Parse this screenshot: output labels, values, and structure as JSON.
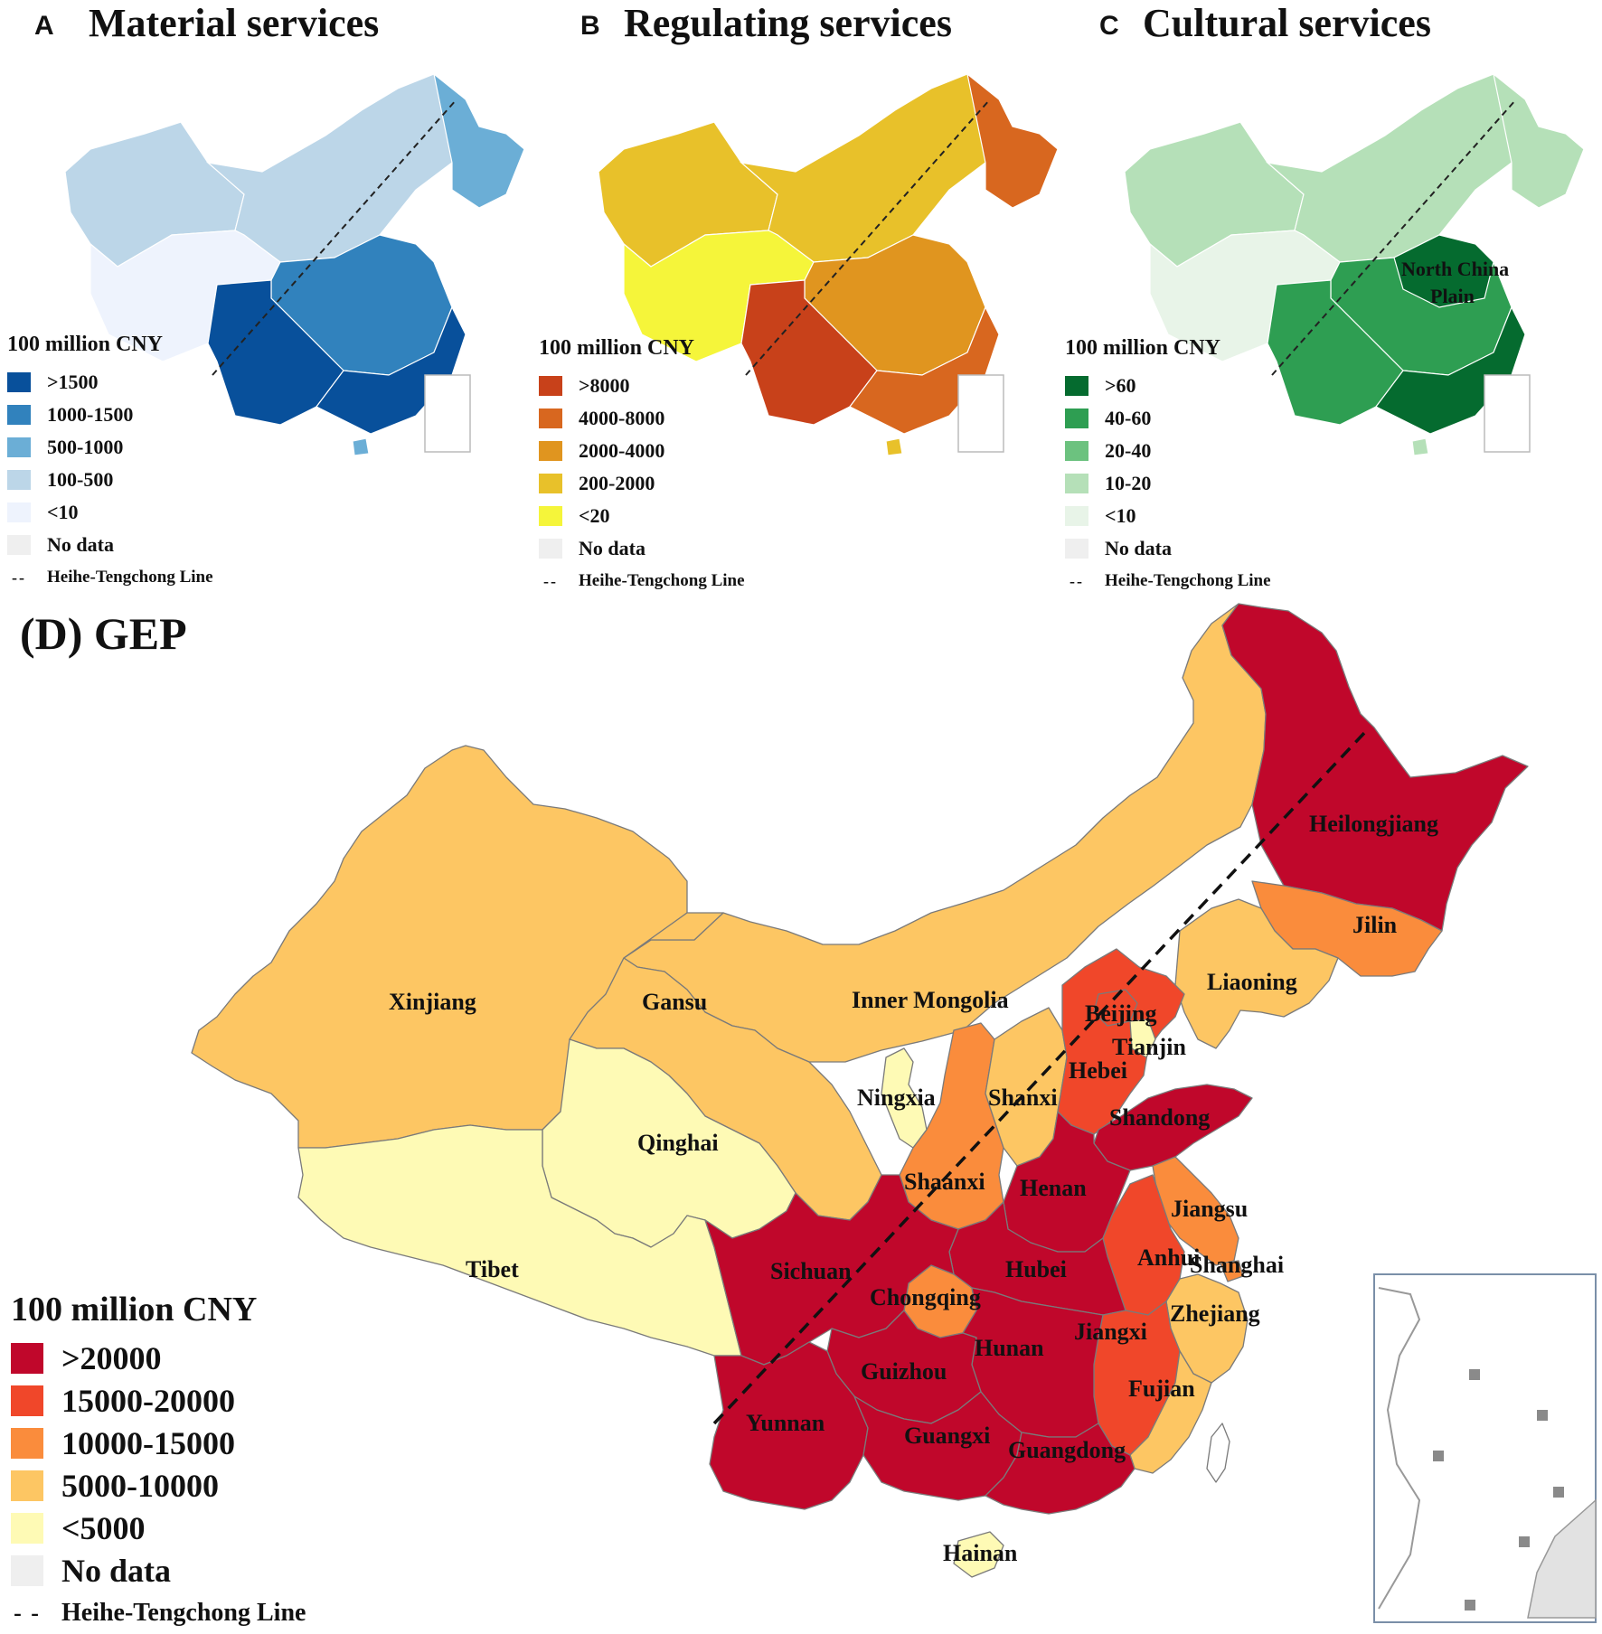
{
  "panels": [
    {
      "letter": "A",
      "title": "Material services",
      "legend_title": "100 million CNY",
      "classes": [
        {
          "label": ">1500",
          "color": "#08509b"
        },
        {
          "label": "1000-1500",
          "color": "#3182bd"
        },
        {
          "label": "500-1000",
          "color": "#6baed6"
        },
        {
          "label": "100-500",
          "color": "#bcd6e8"
        },
        {
          "label": "<10",
          "color": "#eef3fd"
        }
      ],
      "no_data": {
        "label": "No data",
        "color": "#efefef"
      },
      "line_label": "Heihe-Tengchong Line"
    },
    {
      "letter": "B",
      "title": "Regulating services",
      "legend_title": "100 million CNY",
      "classes": [
        {
          "label": ">8000",
          "color": "#c8411a"
        },
        {
          "label": "4000-8000",
          "color": "#d8671f"
        },
        {
          "label": "2000-4000",
          "color": "#e0951f"
        },
        {
          "label": "200-2000",
          "color": "#e8c12a"
        },
        {
          "label": "<20",
          "color": "#f5f53a"
        }
      ],
      "no_data": {
        "label": "No data",
        "color": "#efefef"
      },
      "line_label": "Heihe-Tengchong Line"
    },
    {
      "letter": "C",
      "title": "Cultural services",
      "legend_title": "100 million CNY",
      "classes": [
        {
          "label": ">60",
          "color": "#056b2f"
        },
        {
          "label": "40-60",
          "color": "#2e9e52"
        },
        {
          "label": "20-40",
          "color": "#6cc27f"
        },
        {
          "label": "10-20",
          "color": "#b5e0b8"
        },
        {
          "label": "<10",
          "color": "#e8f4e8"
        }
      ],
      "no_data": {
        "label": "No data",
        "color": "#efefef"
      },
      "line_label": "Heihe-Tengchong Line",
      "annotation": [
        "North China",
        "Plain"
      ]
    }
  ],
  "gep": {
    "title": "(D) GEP",
    "legend_title": "100 million CNY",
    "classes": [
      {
        "label": ">20000",
        "color": "#c0072b"
      },
      {
        "label": "15000-20000",
        "color": "#f0472a"
      },
      {
        "label": "10000-15000",
        "color": "#fa8c3c"
      },
      {
        "label": "5000-10000",
        "color": "#fdc663"
      },
      {
        "label": "<5000",
        "color": "#fefab5"
      }
    ],
    "no_data": {
      "label": "No data",
      "color": "#efefef"
    },
    "line_label": "Heihe-Tengchong Line",
    "provinces": [
      {
        "name": "Heilongjiang",
        "class": ">20000"
      },
      {
        "name": "Jilin",
        "class": "10000-15000"
      },
      {
        "name": "Liaoning",
        "class": "5000-10000"
      },
      {
        "name": "Inner Mongolia",
        "class": "5000-10000"
      },
      {
        "name": "Xinjiang",
        "class": "5000-10000"
      },
      {
        "name": "Gansu",
        "class": "5000-10000"
      },
      {
        "name": "Beijing",
        "class": "15000-20000"
      },
      {
        "name": "Tianjin",
        "class": "<5000"
      },
      {
        "name": "Hebei",
        "class": "15000-20000"
      },
      {
        "name": "Ningxia",
        "class": "<5000"
      },
      {
        "name": "Shanxi",
        "class": "5000-10000"
      },
      {
        "name": "Shandong",
        "class": ">20000"
      },
      {
        "name": "Qinghai",
        "class": "<5000"
      },
      {
        "name": "Shaanxi",
        "class": "10000-15000"
      },
      {
        "name": "Henan",
        "class": ">20000"
      },
      {
        "name": "Jiangsu",
        "class": "10000-15000"
      },
      {
        "name": "Tibet",
        "class": "<5000"
      },
      {
        "name": "Sichuan",
        "class": ">20000"
      },
      {
        "name": "Hubei",
        "class": ">20000"
      },
      {
        "name": "Anhui",
        "class": "15000-20000"
      },
      {
        "name": "Shanghai",
        "class": "10000-15000"
      },
      {
        "name": "Chongqing",
        "class": "10000-15000"
      },
      {
        "name": "Zhejiang",
        "class": "5000-10000"
      },
      {
        "name": "Jiangxi",
        "class": "15000-20000"
      },
      {
        "name": "Hunan",
        "class": ">20000"
      },
      {
        "name": "Guizhou",
        "class": ">20000"
      },
      {
        "name": "Fujian",
        "class": "5000-10000"
      },
      {
        "name": "Yunnan",
        "class": ">20000"
      },
      {
        "name": "Guangxi",
        "class": ">20000"
      },
      {
        "name": "Guangdong",
        "class": ">20000"
      },
      {
        "name": "Hainan",
        "class": "<5000"
      }
    ]
  }
}
